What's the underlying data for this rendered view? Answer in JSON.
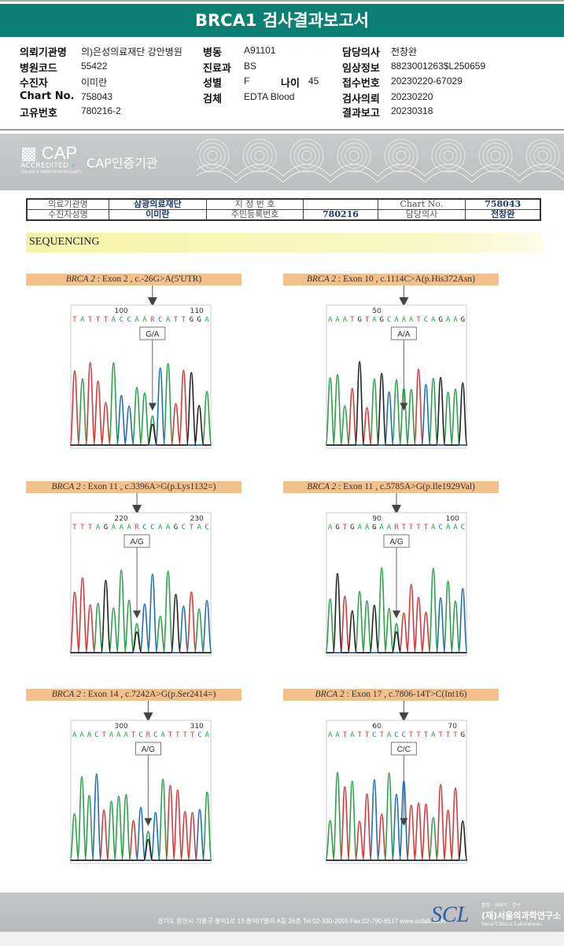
{
  "header": {
    "title": "BRCA1 검사결과보고서"
  },
  "info": {
    "col1": [
      {
        "label": "의뢰기관명",
        "value": "의)은성의료재단 강안병원"
      },
      {
        "label": "병원코드",
        "value": "55422"
      },
      {
        "label": "수진자",
        "value": "이미란"
      },
      {
        "label": "Chart No.",
        "value": "758043"
      },
      {
        "label": "고유번호",
        "value": "780216-2"
      }
    ],
    "col2": [
      {
        "label": "병동",
        "value": "A91101"
      },
      {
        "label": "진료과",
        "value": "BS"
      },
      {
        "label": "성별",
        "value": "F"
      },
      {
        "label": "검체",
        "value": "EDTA Blood"
      }
    ],
    "age": {
      "label": "나이",
      "value": "45"
    },
    "col3": [
      {
        "label": "담당의사",
        "value": "전창완"
      },
      {
        "label": "임상정보",
        "value": "8823001263$L250659"
      },
      {
        "label": "접수번호",
        "value": "20230220-67029"
      },
      {
        "label": "검사의뢰",
        "value": "20230220"
      },
      {
        "label": "결과보고",
        "value": "20230318"
      }
    ]
  },
  "banner": {
    "cap_logo": "CAP",
    "cap_accredited": "ACCREDITED",
    "cap_college": "COLLEGE of AMERICAN PATHOLOGISTS",
    "cap_text": "CAP인증기관"
  },
  "patient_table": {
    "row1": [
      "의료기관명",
      "삼광의료재단",
      "지 정 번 호",
      "",
      "Chart No.",
      "758043"
    ],
    "row2": [
      "수진자성명",
      "이미란",
      "주민등록번호",
      "780216",
      "담당의사",
      "전창완"
    ]
  },
  "section_title": "SEQUENCING",
  "base_colors": {
    "A": "#2ca04a",
    "T": "#d43a3a",
    "C": "#1f6fb5",
    "G": "#222222",
    "R": "#c0407a"
  },
  "panels": [
    {
      "gene": "BRCA 2",
      "desc": " : Exon 2 , c.-26G>A(5'UTR)",
      "ticks": [
        "100",
        "110"
      ],
      "sequence": "TATTTACCAARCATTGGA",
      "genotype": "G/A"
    },
    {
      "gene": "BRCA 2",
      "desc": " : Exon 10 , c.1114C>A(p.His372Asn)",
      "ticks": [
        "50",
        ""
      ],
      "sequence": "AAATGTAGCAAATCAGAAG",
      "genotype": "A/A"
    },
    {
      "gene": "BRCA 2",
      "desc": " : Exon 11 , c.3396A>G(p.Lys1132=)",
      "ticks": [
        "220",
        "230"
      ],
      "sequence": "TTTAGAAARCCAAGCTAC",
      "genotype": "A/G"
    },
    {
      "gene": "BRCA 2",
      "desc": " : Exon 11 , c.5785A>G(p.Ile1929Val)",
      "ticks": [
        "90",
        "100"
      ],
      "sequence": "AGTGAAGAARTTTTACAAC",
      "genotype": "A/G"
    },
    {
      "gene": "BRCA 2",
      "desc": " : Exon 14 , c.7242A>G(p.Ser2414=)",
      "ticks": [
        "300",
        "310"
      ],
      "sequence": "AAACTAAATCRCATTTTCA",
      "genotype": "A/G"
    },
    {
      "gene": "BRCA 2",
      "desc": " : Exon 17 , c.7806-14T>C(Int16)",
      "ticks": [
        "60",
        "70"
      ],
      "sequence": "AATATTCTACCTTTATTTG",
      "genotype": "C/C"
    }
  ],
  "footer": {
    "address": "경기도 용인시 기흥구 흥덕1로 13 흥덕IT밸리 A동 26층  Tel.02-330-2055  Fax.02-790-6517  www.scllab.co.kr",
    "logo": "SCL",
    "slogan": "품질 · 서비스 · 연구",
    "name_kr": "(재)서울의과학연구소",
    "name_en": "Seoul Clinical Laboratories"
  }
}
